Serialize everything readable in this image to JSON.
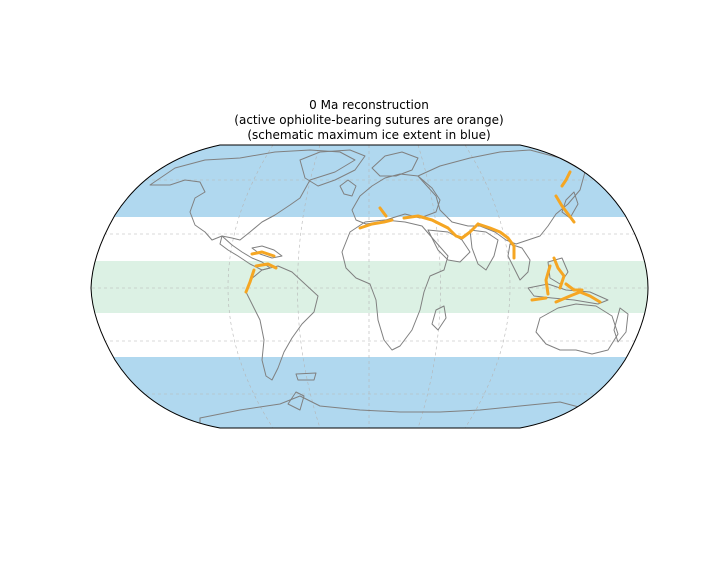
{
  "title": {
    "line1": "0 Ma reconstruction",
    "line2": "(active ophiolite-bearing sutures are orange)",
    "line3": "(schematic maximum ice extent in blue)"
  },
  "colors": {
    "ice": "#b0d8ef",
    "tropical_band": "#dcf1e4",
    "coastline": "#808080",
    "suture": "#f5a623",
    "graticule": "#b5b5b5",
    "frame": "#000000"
  },
  "map": {
    "projection": "Robinson",
    "graticule": true,
    "legend": "none"
  }
}
